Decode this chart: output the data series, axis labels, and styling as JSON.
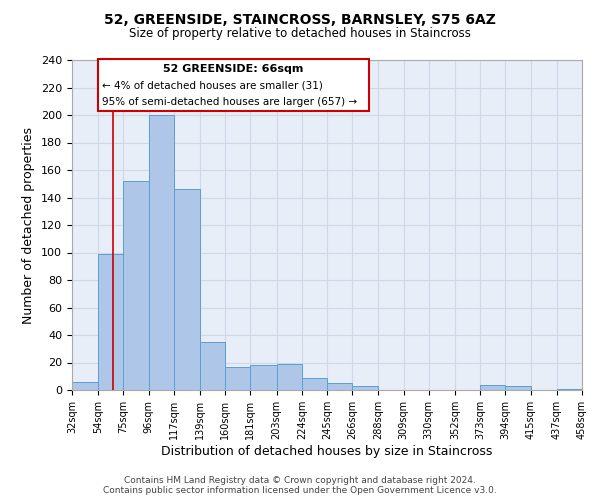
{
  "title": "52, GREENSIDE, STAINCROSS, BARNSLEY, S75 6AZ",
  "subtitle": "Size of property relative to detached houses in Staincross",
  "xlabel": "Distribution of detached houses by size in Staincross",
  "ylabel": "Number of detached properties",
  "bar_edges": [
    32,
    54,
    75,
    96,
    117,
    139,
    160,
    181,
    203,
    224,
    245,
    266,
    288,
    309,
    330,
    352,
    373,
    394,
    415,
    437,
    458
  ],
  "bar_heights": [
    6,
    99,
    152,
    200,
    146,
    35,
    17,
    18,
    19,
    9,
    5,
    3,
    0,
    0,
    0,
    0,
    4,
    3,
    0,
    1
  ],
  "bar_color": "#aec6e8",
  "bar_edge_color": "#5a9fd4",
  "tick_labels": [
    "32sqm",
    "54sqm",
    "75sqm",
    "96sqm",
    "117sqm",
    "139sqm",
    "160sqm",
    "181sqm",
    "203sqm",
    "224sqm",
    "245sqm",
    "266sqm",
    "288sqm",
    "309sqm",
    "330sqm",
    "352sqm",
    "373sqm",
    "394sqm",
    "415sqm",
    "437sqm",
    "458sqm"
  ],
  "ylim": [
    0,
    240
  ],
  "yticks": [
    0,
    20,
    40,
    60,
    80,
    100,
    120,
    140,
    160,
    180,
    200,
    220,
    240
  ],
  "property_line_x": 66,
  "property_line_color": "#cc0000",
  "annotation_title": "52 GREENSIDE: 66sqm",
  "annotation_line1": "← 4% of detached houses are smaller (31)",
  "annotation_line2": "95% of semi-detached houses are larger (657) →",
  "annotation_box_color": "#ffffff",
  "annotation_box_edge": "#cc0000",
  "footer1": "Contains HM Land Registry data © Crown copyright and database right 2024.",
  "footer2": "Contains public sector information licensed under the Open Government Licence v3.0.",
  "background_color": "#ffffff",
  "grid_color": "#d0d8e8",
  "plot_bg_color": "#e8eef8"
}
